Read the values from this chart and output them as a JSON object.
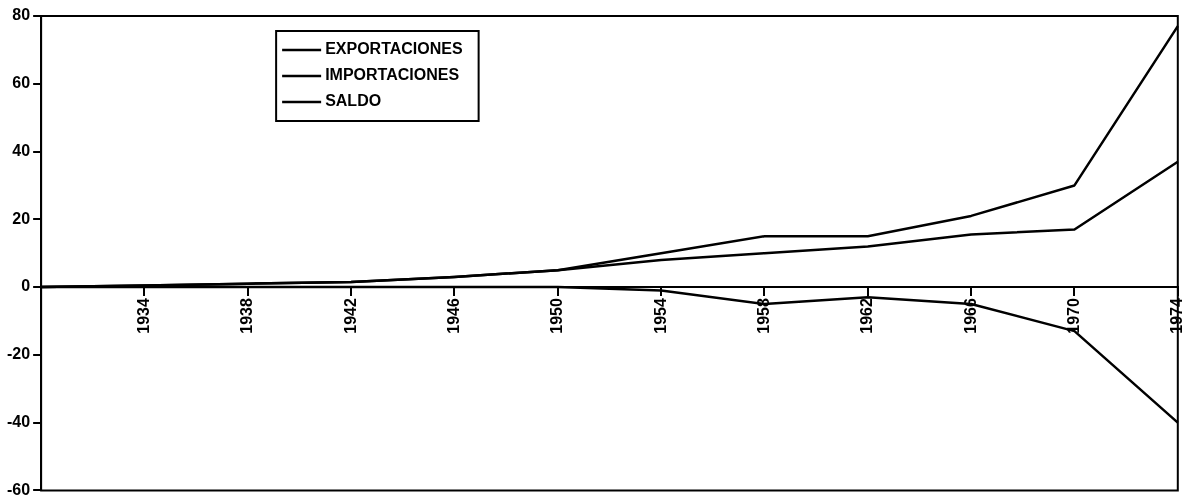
{
  "chart_data": {
    "type": "line",
    "categories": [
      null,
      "1934",
      "1938",
      "1942",
      "1946",
      "1950",
      "1954",
      "1958",
      "1962",
      "1966",
      "1970",
      "1974"
    ],
    "series": [
      {
        "name": "EXPORTACIONES",
        "color": "#000000",
        "values": [
          0,
          0.5,
          1,
          1.5,
          3,
          5,
          8,
          10,
          12,
          15.5,
          17,
          37
        ]
      },
      {
        "name": "IMPORTACIONES",
        "color": "#000000",
        "values": [
          0,
          0.5,
          1,
          1.5,
          3,
          5,
          10,
          15,
          15,
          21,
          30,
          77
        ]
      },
      {
        "name": "SALDO",
        "color": "#000000",
        "values": [
          0,
          0,
          0,
          0,
          0,
          0,
          -1,
          -5,
          -3,
          -5,
          -13,
          -40
        ]
      }
    ],
    "ylim": [
      -60,
      80
    ],
    "yticks": [
      -60,
      -40,
      -20,
      0,
      20,
      40,
      60,
      80
    ],
    "grid": false,
    "legend": "top left",
    "marker": "none",
    "line_style": "solid"
  }
}
